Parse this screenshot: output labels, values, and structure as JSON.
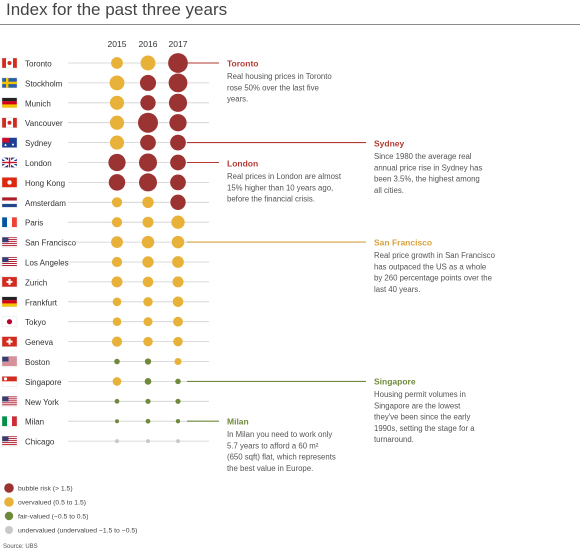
{
  "title": "Index for the past three years",
  "source": "Source: UBS",
  "colors": {
    "bubble": "#9b3333",
    "overvalued": "#e8b23a",
    "fair": "#6f8a3a",
    "undervalued": "#c9c9c9",
    "accent_red": "#b23a32",
    "accent_orange": "#d7a23b",
    "accent_green": "#6f8a3a",
    "stem": "#cfcfcf"
  },
  "chart_data": {
    "type": "bubble-matrix",
    "x": [
      "2015",
      "2016",
      "2017"
    ],
    "categories_legend": [
      {
        "key": "bubble",
        "label": "bubble risk  (> 1.5)"
      },
      {
        "key": "overvalued",
        "label": "overvalued (0.5 to 1.5)"
      },
      {
        "key": "fair",
        "label": "fair-valued (−0.5 to 0.5)"
      },
      {
        "key": "undervalued",
        "label": "undervalued (undervalued −1.5 to −0.5)"
      }
    ],
    "cities": [
      {
        "name": "Toronto",
        "flag": "canada-flag",
        "values": [
          1.1,
          1.5,
          2.12
        ]
      },
      {
        "name": "Stockholm",
        "flag": "sweden-flag",
        "values": [
          1.5,
          1.65,
          2.0
        ]
      },
      {
        "name": "Munich",
        "flag": "germany-flag",
        "values": [
          1.4,
          1.55,
          1.92
        ]
      },
      {
        "name": "Vancouver",
        "flag": "canada-flag",
        "values": [
          1.4,
          2.3,
          1.8
        ]
      },
      {
        "name": "Sydney",
        "flag": "australia-flag",
        "values": [
          1.4,
          1.6,
          1.6
        ]
      },
      {
        "name": "London",
        "flag": "uk-flag",
        "values": [
          1.8,
          1.9,
          1.6
        ]
      },
      {
        "name": "Hong Kong",
        "flag": "hongkong-flag",
        "values": [
          1.7,
          1.9,
          1.6
        ]
      },
      {
        "name": "Amsterdam",
        "flag": "netherlands-flag",
        "values": [
          0.9,
          1.05,
          1.55
        ]
      },
      {
        "name": "Paris",
        "flag": "france-flag",
        "values": [
          0.9,
          1.0,
          1.3
        ]
      },
      {
        "name": "San Francisco",
        "flag": "us-flag",
        "values": [
          1.1,
          1.2,
          1.2
        ]
      },
      {
        "name": "Los Angeles",
        "flag": "us-flag",
        "values": [
          0.9,
          1.05,
          1.1
        ]
      },
      {
        "name": "Zurich",
        "flag": "swiss-flag",
        "values": [
          1.0,
          0.95,
          1.0
        ]
      },
      {
        "name": "Frankfurt",
        "flag": "germany-flag",
        "values": [
          0.7,
          0.8,
          0.95
        ]
      },
      {
        "name": "Tokyo",
        "flag": "japan-flag",
        "values": [
          0.7,
          0.75,
          0.85
        ]
      },
      {
        "name": "Geneva",
        "flag": "swiss-flag",
        "values": [
          0.9,
          0.8,
          0.8
        ]
      },
      {
        "name": "Boston",
        "flag": "us-flag",
        "values": [
          0.3,
          0.4,
          0.5
        ]
      },
      {
        "name": "Singapore",
        "flag": "singapore-flag",
        "values": [
          0.7,
          0.45,
          0.3
        ]
      },
      {
        "name": "New York",
        "flag": "us-flag",
        "values": [
          0.2,
          0.25,
          0.25
        ]
      },
      {
        "name": "Milan",
        "flag": "italy-flag",
        "values": [
          0.1,
          0.2,
          0.15
        ]
      },
      {
        "name": "Chicago",
        "flag": "us-flag",
        "values": [
          -0.6,
          -0.55,
          -0.6
        ]
      }
    ],
    "annotations": [
      {
        "city": "Toronto",
        "title": "Toronto",
        "color": "accent_red",
        "lines": [
          "Real housing prices in Toronto",
          "rose 50% over the last five",
          "years."
        ]
      },
      {
        "city": "Sydney",
        "title": "Sydney",
        "color": "accent_red",
        "lines": [
          "Since 1980 the average real",
          "annual price rise in Sydney has",
          "been 3.5%, the highest among",
          "all cities."
        ]
      },
      {
        "city": "London",
        "title": "London",
        "color": "accent_red",
        "lines": [
          "Real prices in London are almost",
          "15% higher than 10 years ago,",
          "before the financial crisis."
        ]
      },
      {
        "city": "San Francisco",
        "title": "San Francisco",
        "color": "accent_orange",
        "lines": [
          "Real price growth in San Francisco",
          "has outpaced the US as a whole",
          "by 260 percentage points over the",
          "last 40 years."
        ]
      },
      {
        "city": "Singapore",
        "title": "Singapore",
        "color": "accent_green",
        "lines": [
          "Housing permit volumes in",
          "Singapore are the lowest",
          "they've been since the early",
          "1990s, setting the stage for a",
          "turnaround."
        ]
      },
      {
        "city": "Milan",
        "title": "Milan",
        "color": "accent_green",
        "lines": [
          "In Milan you need to work only",
          "5.7 years to afford a 60 m²",
          "(650 sqft) flat, which represents",
          "the best value in Europe."
        ]
      }
    ]
  }
}
